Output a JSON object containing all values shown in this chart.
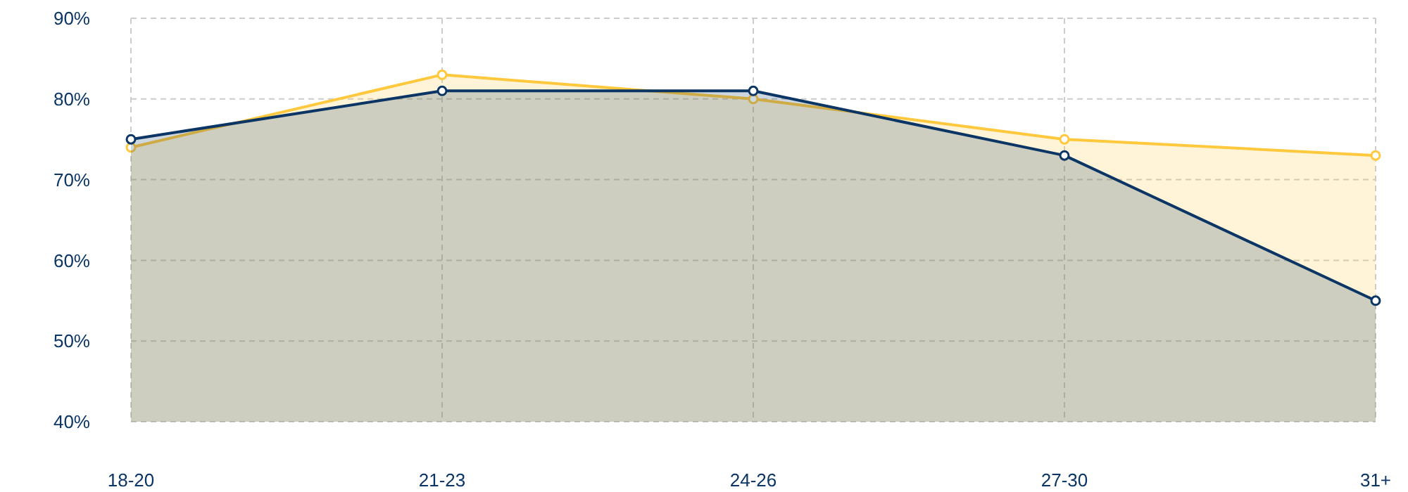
{
  "chart_data": {
    "type": "area",
    "categories": [
      "18-20",
      "21-23",
      "24-26",
      "27-30",
      "31+"
    ],
    "series": [
      {
        "color": "#ffc83d",
        "values": [
          74,
          83,
          80,
          75,
          73
        ]
      },
      {
        "color": "#0b3564",
        "values": [
          75,
          81,
          81,
          73,
          55
        ]
      }
    ],
    "ylim": [
      40,
      90
    ],
    "yticks": [
      {
        "value": 40,
        "label": "40%"
      },
      {
        "value": 50,
        "label": "50%"
      },
      {
        "value": 60,
        "label": "60%"
      },
      {
        "value": 70,
        "label": "70%"
      },
      {
        "value": 80,
        "label": "80%"
      },
      {
        "value": 90,
        "label": "90%"
      }
    ],
    "grid": true,
    "marker": "circle"
  }
}
